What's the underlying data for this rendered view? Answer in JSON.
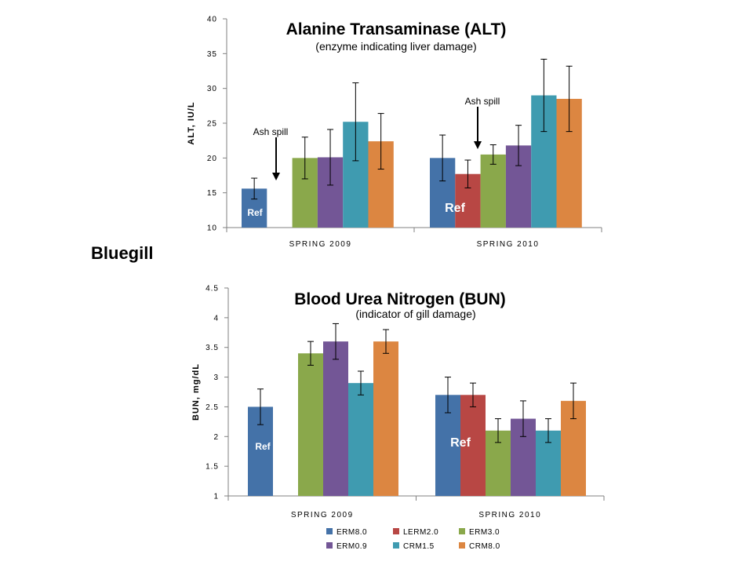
{
  "side_label": "Bluegill",
  "colors": {
    "ERM8.0": "#4472a8",
    "LERM2.0": "#b84744",
    "ERM3.0": "#8aa84b",
    "ERM0.9": "#735696",
    "CRM1.5": "#3f9bb0",
    "CRM8.0": "#dc8641"
  },
  "chart_data": [
    {
      "type": "bar",
      "title": "Alanine Transaminase (ALT)",
      "subtitle": "(enzyme indicating liver damage)",
      "ylabel": "ALT, IU/L",
      "xlabel": "",
      "ylim": [
        10,
        40
      ],
      "yticks": [
        "10",
        "15",
        "20",
        "25",
        "30",
        "35",
        "40"
      ],
      "categories": [
        "SPRING 2009",
        "SPRING 2010"
      ],
      "series": [
        {
          "name": "ERM8.0",
          "values": [
            15.6,
            20.0
          ],
          "errors": [
            1.5,
            3.3
          ]
        },
        {
          "name": "LERM2.0",
          "values": [
            null,
            17.7
          ],
          "errors": [
            null,
            2.0
          ]
        },
        {
          "name": "ERM3.0",
          "values": [
            20.0,
            20.5
          ],
          "errors": [
            3.0,
            1.4
          ]
        },
        {
          "name": "ERM0.9",
          "values": [
            20.1,
            21.8
          ],
          "errors": [
            4.0,
            2.9
          ]
        },
        {
          "name": "CRM1.5",
          "values": [
            25.2,
            29.0
          ],
          "errors": [
            5.6,
            5.2
          ]
        },
        {
          "name": "CRM8.0",
          "values": [
            22.4,
            28.5
          ],
          "errors": [
            4.0,
            4.7
          ]
        }
      ],
      "annotations": [
        {
          "text": "Ash spill",
          "category": "SPRING 2009"
        },
        {
          "text": "Ash spill",
          "category": "SPRING 2010"
        }
      ],
      "ref_labels": [
        {
          "text": "Ref",
          "category": "SPRING 2009",
          "series": "ERM8.0"
        },
        {
          "text": "Ref",
          "category": "SPRING 2010",
          "series": "ERM8.0"
        }
      ]
    },
    {
      "type": "bar",
      "title": "Blood Urea Nitrogen (BUN)",
      "subtitle": "(indicator of gill damage)",
      "ylabel": "BUN, mg/dL",
      "xlabel": "",
      "ylim": [
        1,
        4.5
      ],
      "yticks": [
        "1",
        "1.5",
        "2",
        "2.5",
        "3",
        "3.5",
        "4",
        "4.5"
      ],
      "categories": [
        "SPRING 2009",
        "SPRING 2010"
      ],
      "series": [
        {
          "name": "ERM8.0",
          "values": [
            2.5,
            2.7
          ],
          "errors": [
            0.3,
            0.3
          ]
        },
        {
          "name": "LERM2.0",
          "values": [
            null,
            2.7
          ],
          "errors": [
            null,
            0.2
          ]
        },
        {
          "name": "ERM3.0",
          "values": [
            3.4,
            2.1
          ],
          "errors": [
            0.2,
            0.2
          ]
        },
        {
          "name": "ERM0.9",
          "values": [
            3.6,
            2.3
          ],
          "errors": [
            0.3,
            0.3
          ]
        },
        {
          "name": "CRM1.5",
          "values": [
            2.9,
            2.1
          ],
          "errors": [
            0.2,
            0.2
          ]
        },
        {
          "name": "CRM8.0",
          "values": [
            3.6,
            2.6
          ],
          "errors": [
            0.2,
            0.3
          ]
        }
      ],
      "ref_labels": [
        {
          "text": "Ref",
          "category": "SPRING 2009",
          "series": "ERM8.0"
        },
        {
          "text": "Ref",
          "category": "SPRING 2010",
          "series": "LERM2.0"
        }
      ],
      "legend": {
        "placement": "bottom",
        "entries": [
          "ERM8.0",
          "LERM2.0",
          "ERM3.0",
          "ERM0.9",
          "CRM1.5",
          "CRM8.0"
        ]
      }
    }
  ]
}
